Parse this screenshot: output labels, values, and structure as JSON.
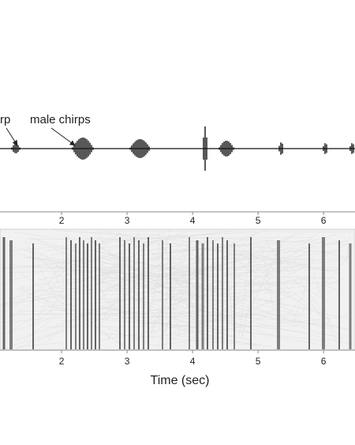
{
  "chart_data": {
    "type": "spectrogram",
    "annotations": [
      "rp",
      "male chirps"
    ],
    "xlabel": "Time (sec)",
    "xlim": [
      1.06,
      6.48
    ],
    "xticks": [
      2,
      3,
      4,
      5,
      6
    ]
  }
}
